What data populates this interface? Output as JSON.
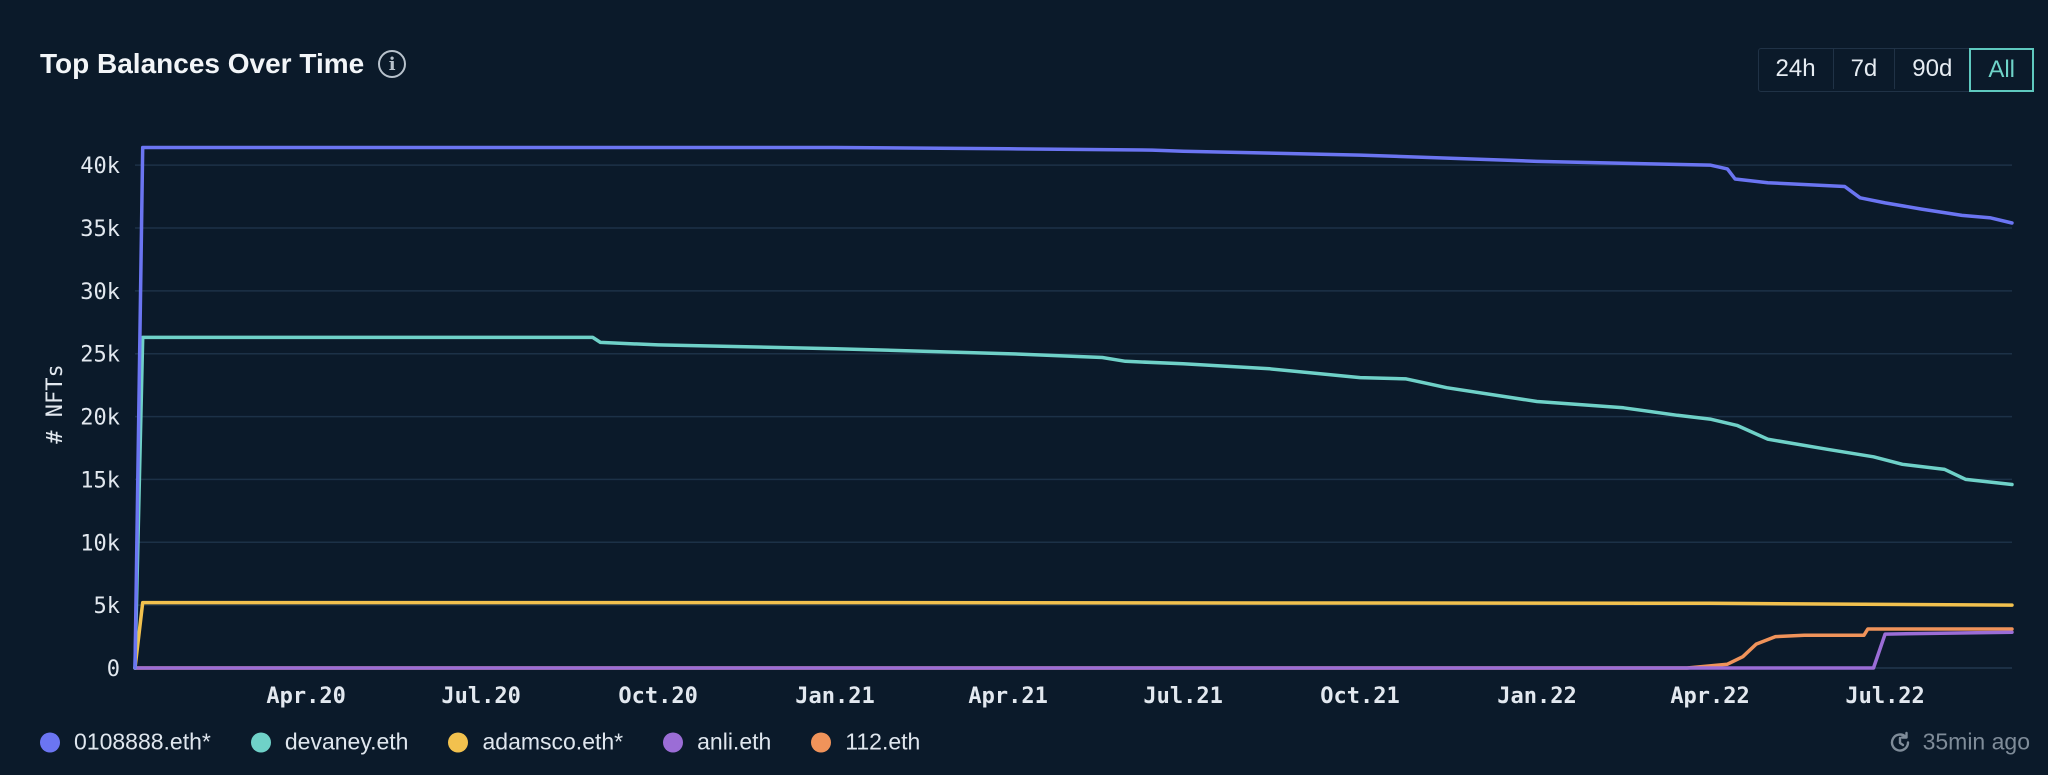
{
  "header": {
    "title": "Top Balances Over Time",
    "info_icon": "info-icon",
    "ranges": [
      {
        "label": "24h",
        "active": false
      },
      {
        "label": "7d",
        "active": false
      },
      {
        "label": "90d",
        "active": false
      },
      {
        "label": "All",
        "active": true
      }
    ]
  },
  "footer": {
    "updated_icon": "clock-refresh-icon",
    "updated_text": "35min ago"
  },
  "chart_data": {
    "type": "line",
    "title": "Top Balances Over Time",
    "xlabel": "",
    "ylabel": "# NFTs",
    "x_range": [
      "2020-01-03",
      "2022-09-05"
    ],
    "ylim": [
      0,
      42000
    ],
    "y_ticks": [
      0,
      5000,
      10000,
      15000,
      20000,
      25000,
      30000,
      35000,
      40000
    ],
    "y_tick_labels": [
      "0",
      "5k",
      "10k",
      "15k",
      "20k",
      "25k",
      "30k",
      "35k",
      "40k"
    ],
    "x_ticks": [
      "2020-04-01",
      "2020-07-01",
      "2020-10-01",
      "2021-01-01",
      "2021-04-01",
      "2021-07-01",
      "2021-10-01",
      "2022-01-01",
      "2022-04-01",
      "2022-07-01"
    ],
    "x_tick_labels": [
      "Apr.20",
      "Jul.20",
      "Oct.20",
      "Jan.21",
      "Apr.21",
      "Jul.21",
      "Oct.21",
      "Jan.22",
      "Apr.22",
      "Jul.22"
    ],
    "grid": true,
    "legend_position": "bottom-left",
    "series": [
      {
        "name": "0108888.eth*",
        "color": "#6b75f2",
        "points": [
          [
            "2020-01-03",
            0
          ],
          [
            "2020-01-07",
            41400
          ],
          [
            "2020-04-01",
            41400
          ],
          [
            "2020-10-01",
            41400
          ],
          [
            "2021-01-01",
            41400
          ],
          [
            "2021-04-01",
            41300
          ],
          [
            "2021-06-15",
            41200
          ],
          [
            "2021-07-01",
            41100
          ],
          [
            "2021-10-01",
            40800
          ],
          [
            "2021-12-15",
            40400
          ],
          [
            "2022-01-01",
            40300
          ],
          [
            "2022-03-01",
            40100
          ],
          [
            "2022-04-01",
            40000
          ],
          [
            "2022-04-10",
            39700
          ],
          [
            "2022-04-14",
            38900
          ],
          [
            "2022-05-01",
            38600
          ],
          [
            "2022-06-10",
            38300
          ],
          [
            "2022-06-18",
            37400
          ],
          [
            "2022-07-01",
            37000
          ],
          [
            "2022-07-20",
            36500
          ],
          [
            "2022-08-10",
            36000
          ],
          [
            "2022-08-25",
            35800
          ],
          [
            "2022-09-05",
            35400
          ]
        ]
      },
      {
        "name": "devaney.eth",
        "color": "#6fd1c8",
        "points": [
          [
            "2020-01-03",
            0
          ],
          [
            "2020-01-07",
            26300
          ],
          [
            "2020-04-01",
            26300
          ],
          [
            "2020-08-28",
            26300
          ],
          [
            "2020-09-01",
            25900
          ],
          [
            "2020-10-01",
            25700
          ],
          [
            "2021-01-01",
            25400
          ],
          [
            "2021-04-01",
            25000
          ],
          [
            "2021-05-20",
            24700
          ],
          [
            "2021-06-01",
            24400
          ],
          [
            "2021-07-01",
            24200
          ],
          [
            "2021-08-15",
            23800
          ],
          [
            "2021-10-01",
            23100
          ],
          [
            "2021-10-25",
            23000
          ],
          [
            "2021-11-15",
            22300
          ],
          [
            "2022-01-01",
            21200
          ],
          [
            "2022-02-15",
            20700
          ],
          [
            "2022-03-15",
            20100
          ],
          [
            "2022-04-01",
            19800
          ],
          [
            "2022-04-15",
            19300
          ],
          [
            "2022-05-01",
            18200
          ],
          [
            "2022-06-01",
            17400
          ],
          [
            "2022-06-25",
            16800
          ],
          [
            "2022-07-10",
            16200
          ],
          [
            "2022-08-01",
            15800
          ],
          [
            "2022-08-12",
            15000
          ],
          [
            "2022-09-05",
            14600
          ]
        ]
      },
      {
        "name": "adamsco.eth*",
        "color": "#f2c14e",
        "points": [
          [
            "2020-01-03",
            0
          ],
          [
            "2020-01-07",
            5200
          ],
          [
            "2021-01-01",
            5200
          ],
          [
            "2022-04-01",
            5150
          ],
          [
            "2022-09-05",
            5000
          ]
        ]
      },
      {
        "name": "anli.eth",
        "color": "#9b6dd6",
        "points": [
          [
            "2020-01-03",
            0
          ],
          [
            "2022-06-25",
            0
          ],
          [
            "2022-07-01",
            2700
          ],
          [
            "2022-09-05",
            2850
          ]
        ]
      },
      {
        "name": "112.eth",
        "color": "#f0935a",
        "points": [
          [
            "2020-01-03",
            0
          ],
          [
            "2022-03-20",
            0
          ],
          [
            "2022-04-10",
            300
          ],
          [
            "2022-04-18",
            900
          ],
          [
            "2022-04-25",
            1900
          ],
          [
            "2022-05-05",
            2500
          ],
          [
            "2022-05-20",
            2600
          ],
          [
            "2022-06-20",
            2600
          ],
          [
            "2022-06-22",
            3100
          ],
          [
            "2022-09-05",
            3100
          ]
        ]
      }
    ]
  }
}
